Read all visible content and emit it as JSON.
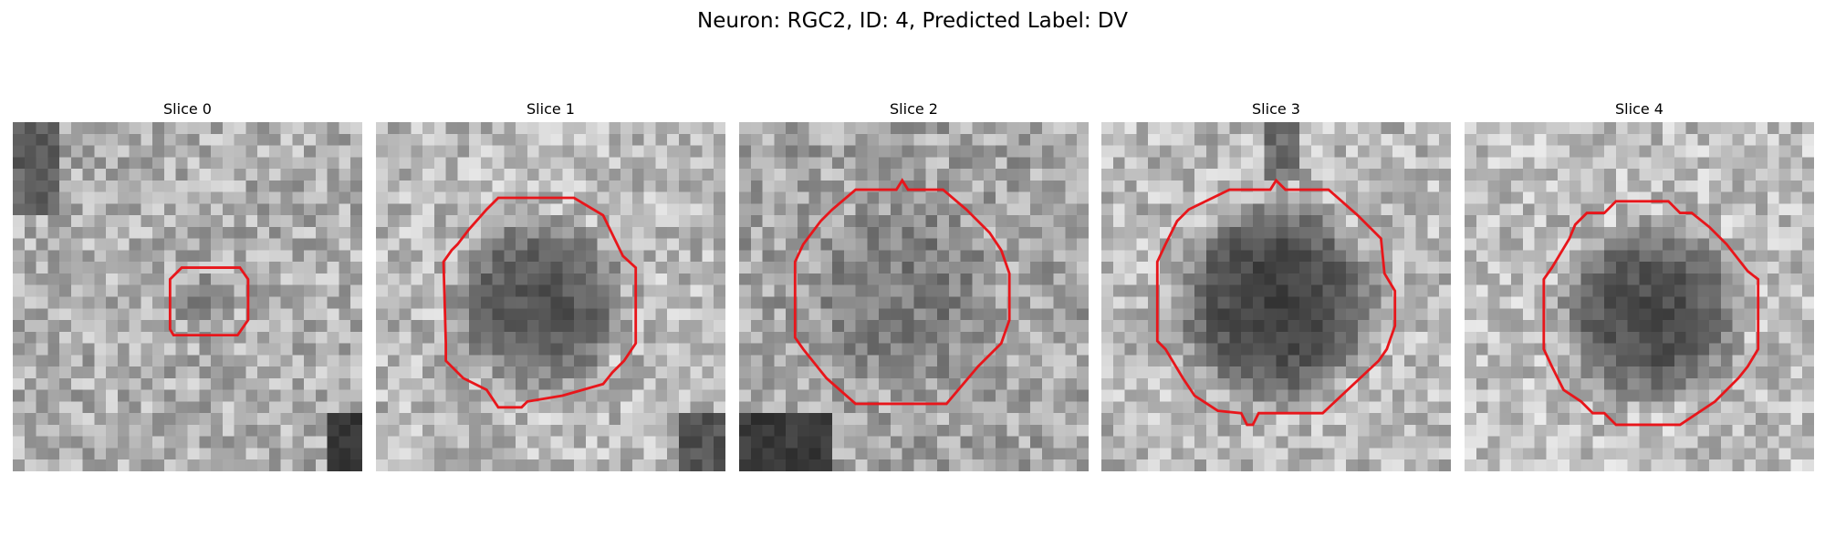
{
  "figure": {
    "title": "Neuron: RGC2, ID: 4, Predicted Label: DV"
  },
  "panels": [
    {
      "title": "Slice 0",
      "image": "grayscale-microscopy-patch",
      "has_contour": true,
      "contour_color": "#e8161b"
    },
    {
      "title": "Slice 1",
      "image": "grayscale-microscopy-patch",
      "has_contour": true,
      "contour_color": "#e8161b"
    },
    {
      "title": "Slice 2",
      "image": "grayscale-microscopy-patch",
      "has_contour": true,
      "contour_color": "#e8161b"
    },
    {
      "title": "Slice 3",
      "image": "grayscale-microscopy-patch",
      "has_contour": true,
      "contour_color": "#e8161b"
    },
    {
      "title": "Slice 4",
      "image": "grayscale-microscopy-patch",
      "has_contour": true,
      "contour_color": "#e8161b"
    }
  ]
}
